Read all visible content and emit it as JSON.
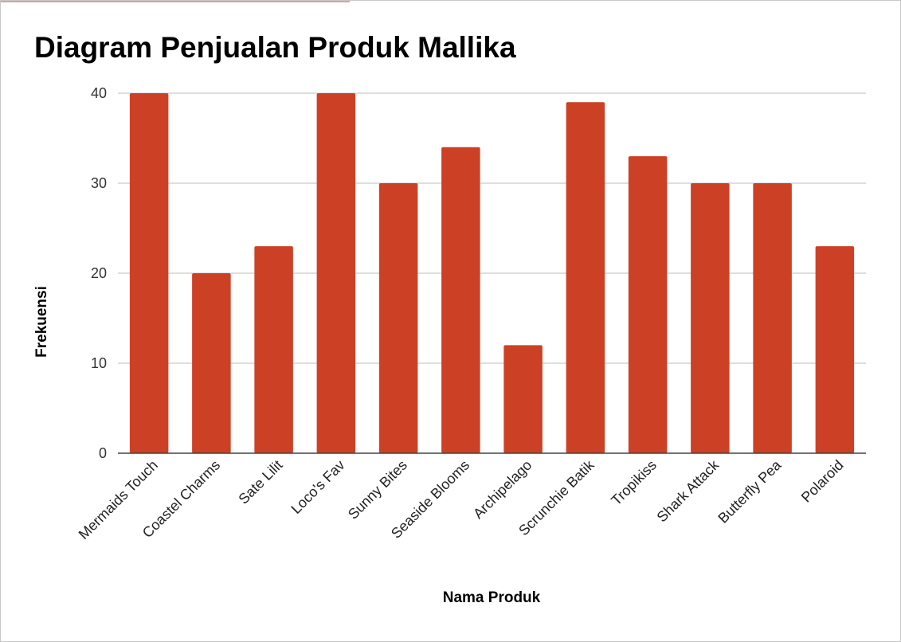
{
  "chart_data": {
    "type": "bar",
    "title": "Diagram Penjualan Produk Mallika",
    "xlabel": "Nama Produk",
    "ylabel": "Frekuensi",
    "ylim": [
      0,
      40
    ],
    "yticks": [
      0,
      10,
      20,
      30,
      40
    ],
    "grid": true,
    "legend": "none",
    "bar_color": "#cc4125",
    "categories": [
      "Mermaids Touch",
      "Coastel Charms",
      "Sate Lilit",
      "Loco's Fav",
      "Sunny Bites",
      "Seaside Blooms",
      "Archipelago",
      "Scrunchie Batik",
      "Tropikiss",
      "Shark Attack",
      "Butterfly Pea",
      "Polaroid"
    ],
    "values": [
      40,
      20,
      23,
      40,
      30,
      34,
      12,
      39,
      33,
      30,
      30,
      23
    ]
  }
}
